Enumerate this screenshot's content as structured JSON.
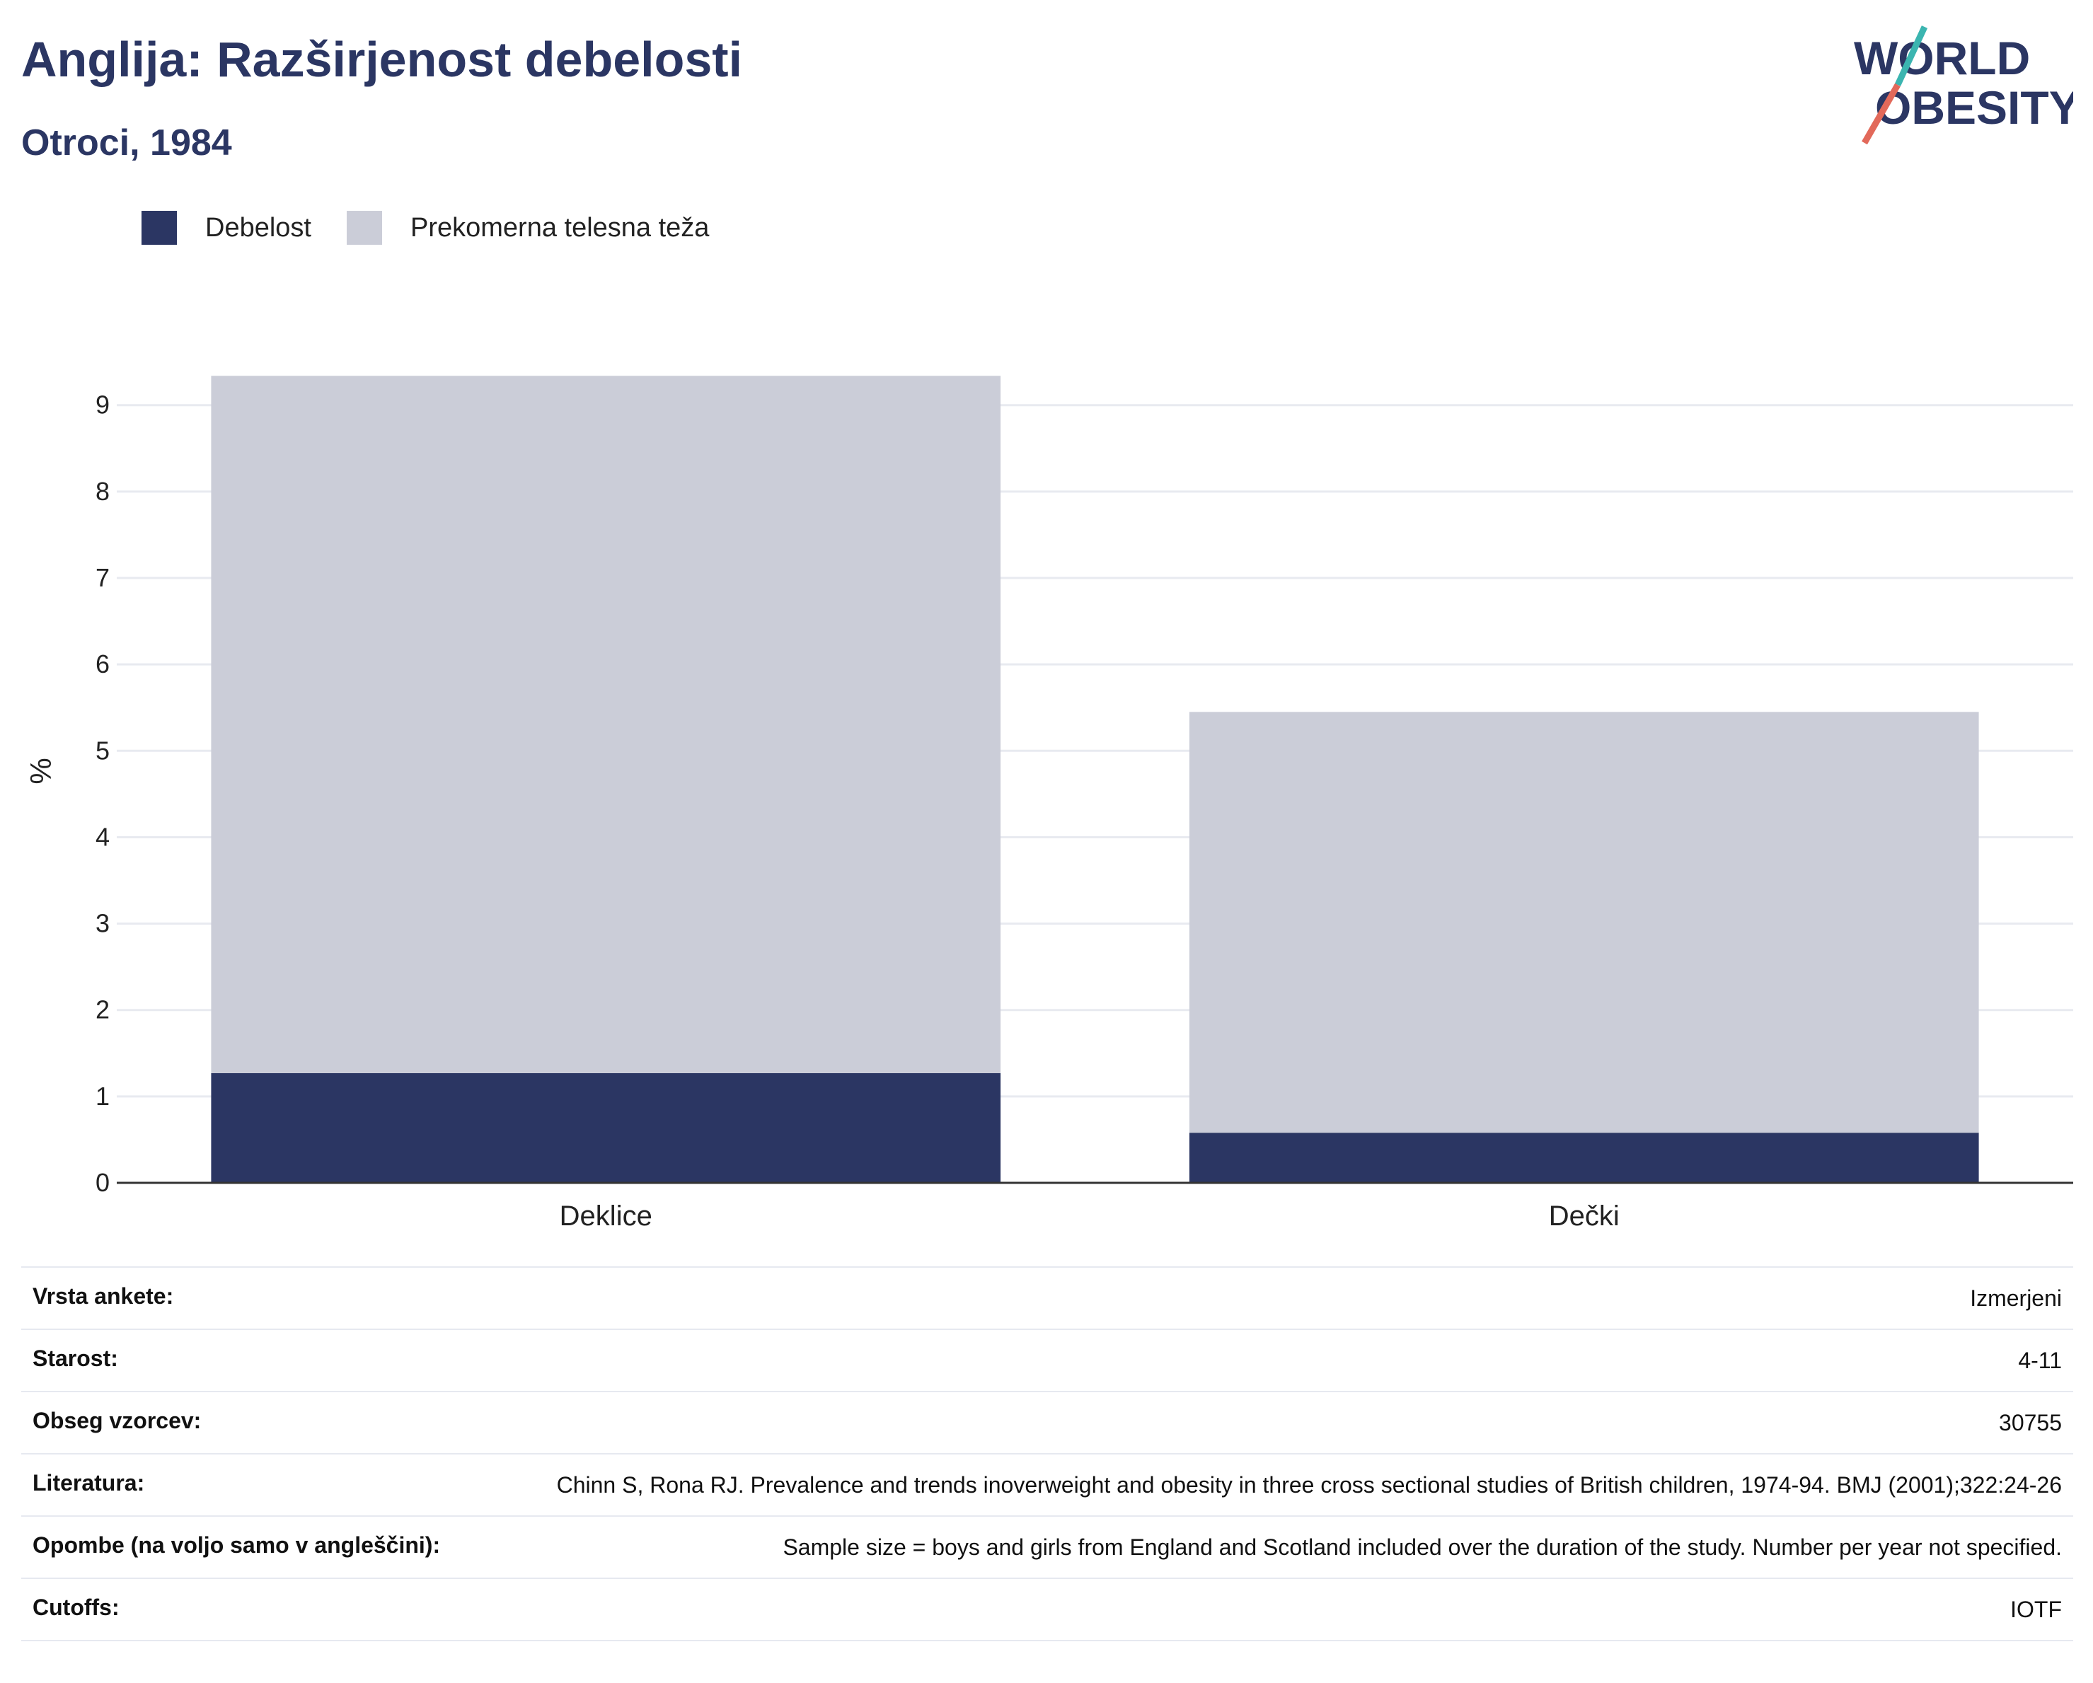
{
  "header": {
    "title": "Anglija: Razširjenost debelosti",
    "subtitle": "Otroci, 1984"
  },
  "logo": {
    "line1": "WORLD",
    "line2": "OBESITY"
  },
  "colors": {
    "obesity": "#2b3663",
    "overweight": "#cbcdd8",
    "accent_teal": "#3bb5b0",
    "accent_coral": "#e2695a"
  },
  "chart_data": {
    "type": "bar",
    "stacked": true,
    "categories": [
      "Deklice",
      "Dečki"
    ],
    "series": [
      {
        "name": "Debelost",
        "values": [
          1.27,
          0.58
        ],
        "color": "#2b3663"
      },
      {
        "name": "Prekomerna telesna teža",
        "values": [
          8.07,
          4.87
        ],
        "color": "#cbcdd8"
      }
    ],
    "ylabel": "%",
    "ylim": [
      0,
      9.35
    ],
    "yticks": [
      "0",
      "1",
      "2",
      "3",
      "4",
      "5",
      "6",
      "7",
      "8",
      "9"
    ],
    "grid": true,
    "legend_position": "top-left"
  },
  "meta": [
    {
      "label": "Vrsta ankete:",
      "value": "Izmerjeni"
    },
    {
      "label": "Starost:",
      "value": "4-11"
    },
    {
      "label": "Obseg vzorcev:",
      "value": "30755"
    },
    {
      "label": "Literatura:",
      "value": "Chinn S, Rona RJ. Prevalence and trends inoverweight and obesity in three cross sectional studies of British children, 1974-94. BMJ (2001);322:24-26"
    },
    {
      "label": "Opombe (na voljo samo v angleščini):",
      "value": "Sample size = boys and girls from England and Scotland included over the duration of the study. Number per year not specified."
    },
    {
      "label": "Cutoffs:",
      "value": "IOTF"
    }
  ]
}
